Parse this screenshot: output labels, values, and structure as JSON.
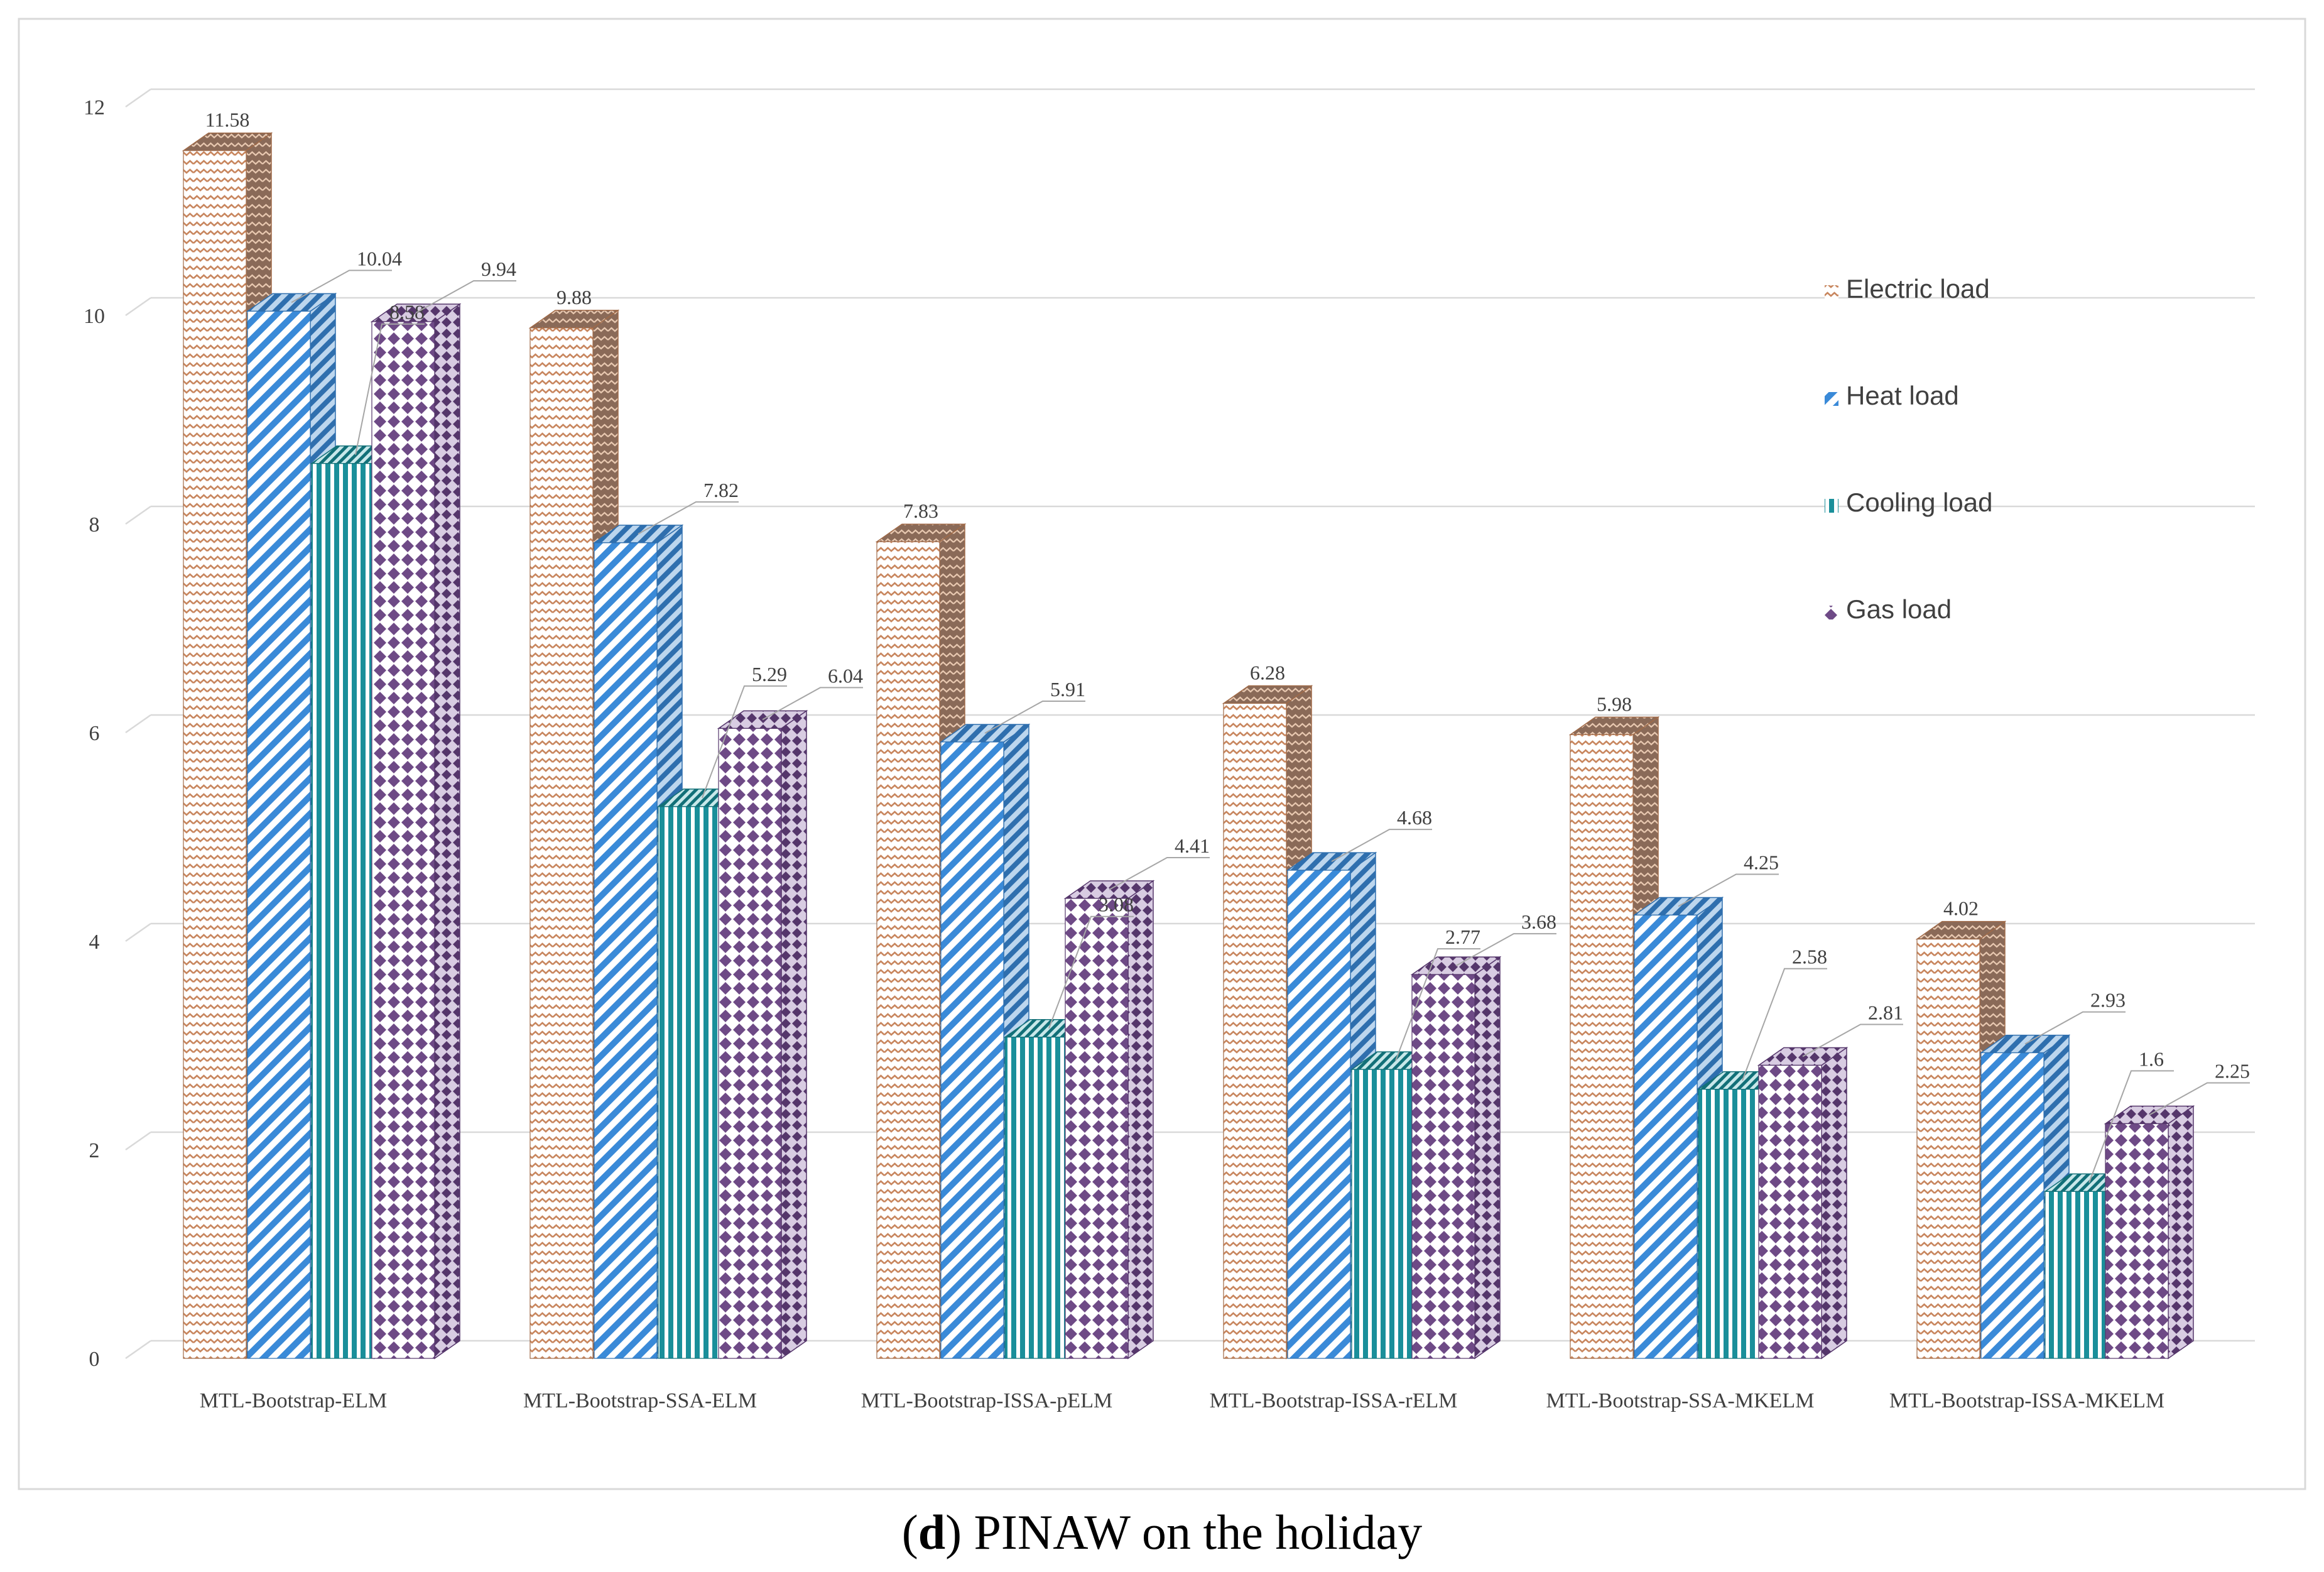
{
  "chart_data": {
    "type": "bar",
    "style": "3d-clustered-column",
    "categories": [
      "MTL-Bootstrap-ELM",
      "MTL-Bootstrap-SSA-ELM",
      "MTL-Bootstrap-ISSA-pELM",
      "MTL-Bootstrap-ISSA-rELM",
      "MTL-Bootstrap-SSA-MKELM",
      "MTL-Bootstrap-ISSA-MKELM"
    ],
    "series": [
      {
        "name": "Electric load",
        "values": [
          11.58,
          9.88,
          7.83,
          6.28,
          5.98,
          4.02
        ],
        "color": "#c8865e",
        "pattern": "zigzag"
      },
      {
        "name": "Heat load",
        "values": [
          10.04,
          7.82,
          5.91,
          4.68,
          4.25,
          2.93
        ],
        "color": "#3a8ad8",
        "pattern": "diagonal"
      },
      {
        "name": "Cooling load",
        "values": [
          8.58,
          5.29,
          3.08,
          2.77,
          2.58,
          1.6
        ],
        "color": "#1a8f9a",
        "pattern": "vertical"
      },
      {
        "name": "Gas load",
        "values": [
          9.94,
          6.04,
          4.41,
          3.68,
          2.81,
          2.25
        ],
        "color": "#6e4a86",
        "pattern": "diamond"
      }
    ],
    "ylim": [
      0,
      12
    ],
    "yticks": [
      0,
      2,
      4,
      6,
      8,
      10,
      12
    ],
    "title": "",
    "xlabel": "",
    "ylabel": "",
    "grid": true,
    "legend": "right"
  },
  "caption": {
    "open": "(",
    "letter": "d",
    "rest": ") PINAW on the holiday"
  }
}
